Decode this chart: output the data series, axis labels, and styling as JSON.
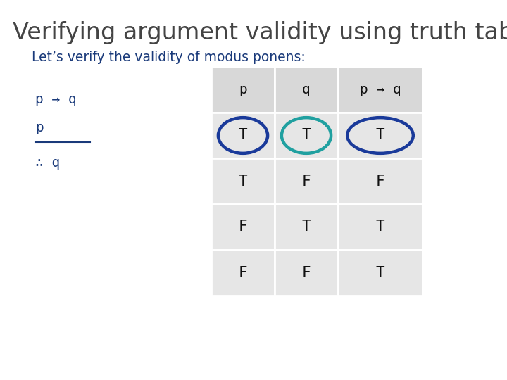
{
  "title": "Verifying argument validity using truth tables",
  "subtitle": "Let’s verify the validity of modus ponens:",
  "title_color": "#444444",
  "subtitle_color": "#1a3a7a",
  "background_color": "#ffffff",
  "columns": [
    "p",
    "q",
    "p → q"
  ],
  "rows": [
    [
      "T",
      "T",
      "T"
    ],
    [
      "T",
      "F",
      "F"
    ],
    [
      "F",
      "T",
      "T"
    ],
    [
      "F",
      "F",
      "T"
    ]
  ],
  "argument_lines": [
    "p → q",
    "p",
    "∴ q"
  ],
  "argument_color": "#1a3a7a",
  "circle_colors": [
    "#1a3a9a",
    "#20a0a0",
    "#1a3a9a"
  ],
  "cell_text_color": "#111111",
  "header_text_color": "#111111",
  "table_cell_bg": "#e6e6e6",
  "table_header_bg": "#d8d8d8"
}
